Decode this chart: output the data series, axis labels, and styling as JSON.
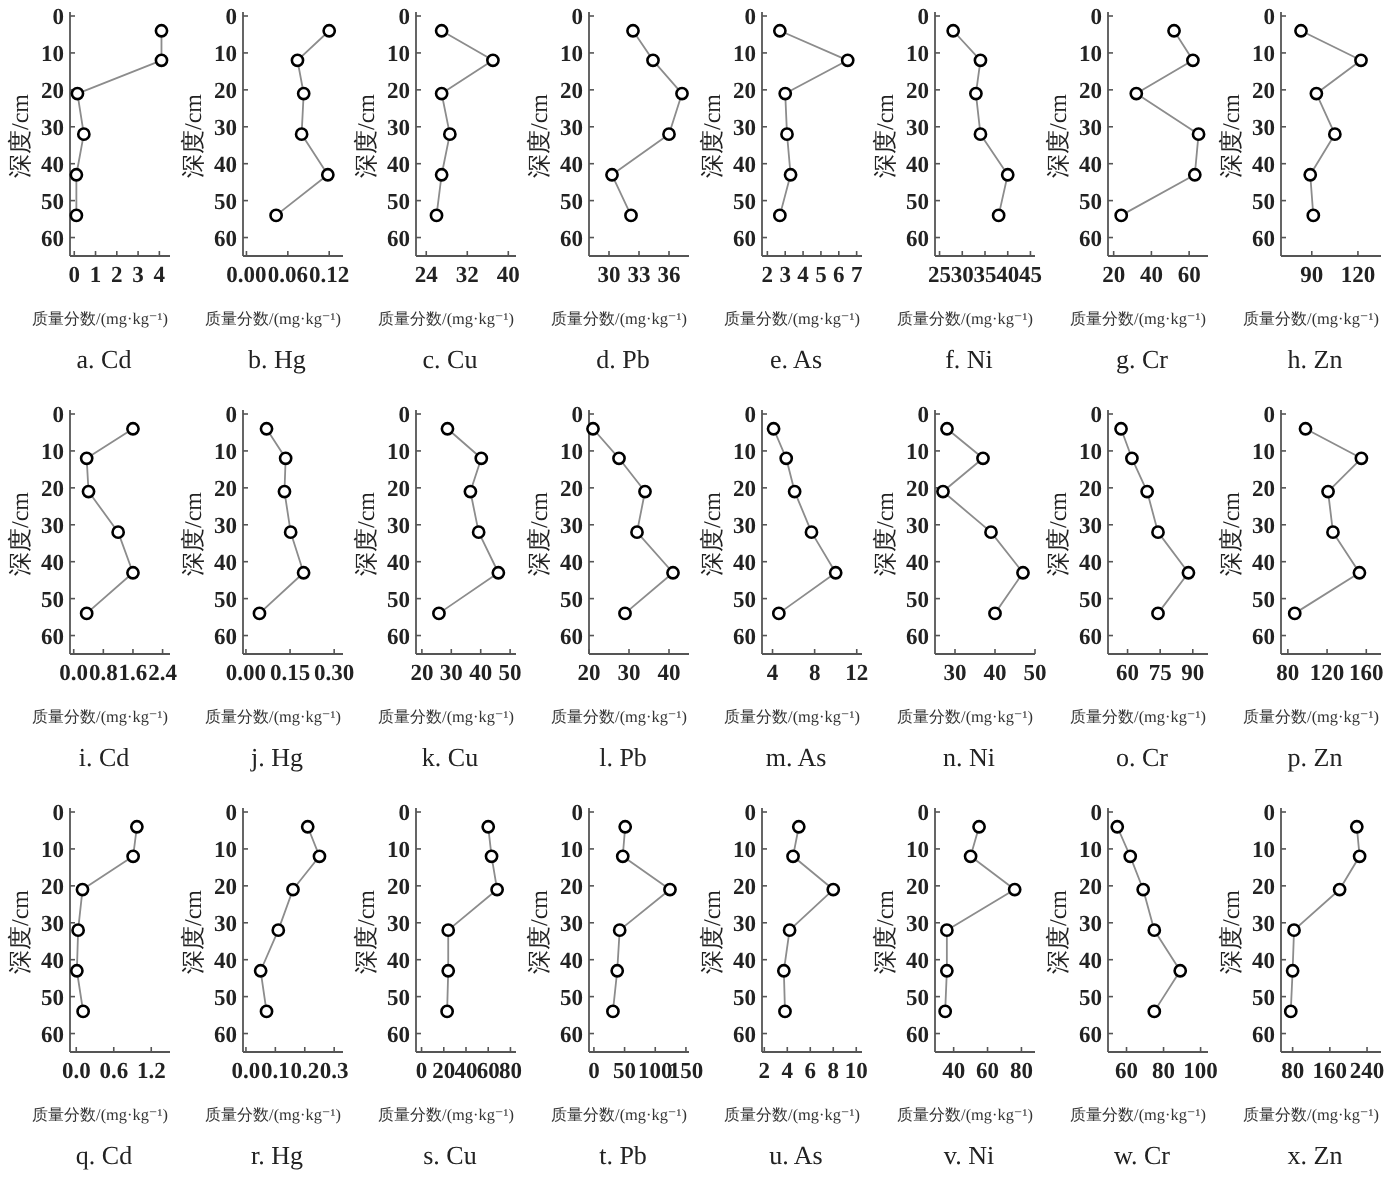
{
  "chart_data": [
    {
      "type": "line",
      "title": "a. Cd",
      "xlabel": "质量分数/(mg·kg⁻¹)",
      "ylabel": "深度/cm",
      "marker": "circle",
      "xlim": [
        -0.2,
        4.5
      ],
      "xticks": [
        0,
        1,
        2,
        3,
        4
      ],
      "ylim": [
        65,
        0
      ],
      "yticks": [
        0,
        10,
        20,
        30,
        40,
        50,
        60
      ],
      "series": [
        {
          "color": "#8c8c8c",
          "x": [
            4.1,
            4.1,
            0.15,
            0.45,
            0.1,
            0.1
          ],
          "values": [
            4,
            12,
            21,
            32,
            43,
            54
          ]
        }
      ]
    },
    {
      "type": "line",
      "title": "b. Hg",
      "xlabel": "质量分数/(mg·kg⁻¹)",
      "ylabel": "深度/cm",
      "marker": "circle",
      "xlim": [
        -0.005,
        0.14
      ],
      "xticks": [
        {
          "value": 0,
          "label": "0.00"
        },
        {
          "value": 0.06,
          "label": "0.06"
        },
        {
          "value": 0.12,
          "label": "0.12"
        }
      ],
      "ylim": [
        65,
        0
      ],
      "yticks": [
        0,
        10,
        20,
        30,
        40,
        50,
        60
      ],
      "series": [
        {
          "color": "#8c8c8c",
          "x": [
            0.12,
            0.074,
            0.083,
            0.08,
            0.118,
            0.043
          ],
          "values": [
            4,
            12,
            21,
            32,
            43,
            54
          ]
        }
      ]
    },
    {
      "type": "line",
      "title": "c. Cu",
      "xlabel": "质量分数/(mg·kg⁻¹)",
      "ylabel": "深度/cm",
      "marker": "circle",
      "xlim": [
        22,
        41.5
      ],
      "xticks": [
        24,
        32,
        40
      ],
      "ylim": [
        65,
        0
      ],
      "yticks": [
        0,
        10,
        20,
        30,
        40,
        50,
        60
      ],
      "series": [
        {
          "color": "#8c8c8c",
          "x": [
            27,
            37,
            27,
            28.6,
            27,
            26
          ],
          "values": [
            4,
            12,
            21,
            32,
            43,
            54
          ]
        }
      ]
    },
    {
      "type": "line",
      "title": "d. Pb",
      "xlabel": "质量分数/(mg·kg⁻¹)",
      "ylabel": "深度/cm",
      "marker": "circle",
      "xlim": [
        28,
        38
      ],
      "xticks": [
        30,
        33,
        36
      ],
      "ylim": [
        65,
        0
      ],
      "yticks": [
        0,
        10,
        20,
        30,
        40,
        50,
        60
      ],
      "series": [
        {
          "color": "#8c8c8c",
          "x": [
            32.4,
            34.4,
            37.3,
            36,
            30.3,
            32.2
          ],
          "values": [
            4,
            12,
            21,
            32,
            43,
            54
          ]
        }
      ]
    },
    {
      "type": "line",
      "title": "e. As",
      "xlabel": "质量分数/(mg·kg⁻¹)",
      "ylabel": "深度/cm",
      "marker": "circle",
      "xlim": [
        1.7,
        7.3
      ],
      "xticks": [
        2,
        3,
        4,
        5,
        6,
        7
      ],
      "ylim": [
        65,
        0
      ],
      "yticks": [
        0,
        10,
        20,
        30,
        40,
        50,
        60
      ],
      "series": [
        {
          "color": "#8c8c8c",
          "x": [
            2.7,
            6.5,
            3.0,
            3.1,
            3.3,
            2.7
          ],
          "values": [
            4,
            12,
            21,
            32,
            43,
            54
          ]
        }
      ]
    },
    {
      "type": "line",
      "title": "f. Ni",
      "xlabel": "质量分数/(mg·kg⁻¹)",
      "ylabel": "深度/cm",
      "marker": "circle",
      "xlim": [
        24,
        46
      ],
      "xticks": [
        25,
        30,
        35,
        40,
        45
      ],
      "ylim": [
        65,
        0
      ],
      "yticks": [
        0,
        10,
        20,
        30,
        40,
        50,
        60
      ],
      "series": [
        {
          "color": "#8c8c8c",
          "x": [
            28,
            34,
            33,
            34,
            40,
            38
          ],
          "values": [
            4,
            12,
            21,
            32,
            43,
            54
          ]
        }
      ]
    },
    {
      "type": "line",
      "title": "g. Cr",
      "xlabel": "质量分数/(mg·kg⁻¹)",
      "ylabel": "深度/cm",
      "marker": "circle",
      "xlim": [
        17,
        70
      ],
      "xticks": [
        20,
        40,
        60
      ],
      "ylim": [
        65,
        0
      ],
      "yticks": [
        0,
        10,
        20,
        30,
        40,
        50,
        60
      ],
      "series": [
        {
          "color": "#8c8c8c",
          "x": [
            52,
            62,
            32,
            65,
            63,
            24
          ],
          "values": [
            4,
            12,
            21,
            32,
            43,
            54
          ]
        }
      ]
    },
    {
      "type": "line",
      "title": "h. Zn",
      "xlabel": "质量分数/(mg·kg⁻¹)",
      "ylabel": "深度/cm",
      "marker": "circle",
      "xlim": [
        70,
        135
      ],
      "xticks": [
        90,
        120
      ],
      "ylim": [
        65,
        0
      ],
      "yticks": [
        0,
        10,
        20,
        30,
        40,
        50,
        60
      ],
      "series": [
        {
          "color": "#8c8c8c",
          "x": [
            83,
            122,
            93,
            105,
            89,
            91
          ],
          "values": [
            4,
            12,
            21,
            32,
            43,
            54
          ]
        }
      ]
    },
    {
      "type": "line",
      "title": "i. Cd",
      "xlabel": "质量分数/(mg·kg⁻¹)",
      "ylabel": "深度/cm",
      "marker": "circle",
      "xlim": [
        -0.1,
        2.6
      ],
      "xticks": [
        {
          "value": 0,
          "label": "0.0"
        },
        {
          "value": 0.8,
          "label": "0.8"
        },
        {
          "value": 1.6,
          "label": "1.6"
        },
        {
          "value": 2.4,
          "label": "2.4"
        }
      ],
      "ylim": [
        65,
        0
      ],
      "yticks": [
        0,
        10,
        20,
        30,
        40,
        50,
        60
      ],
      "series": [
        {
          "color": "#8c8c8c",
          "x": [
            1.6,
            0.35,
            0.4,
            1.2,
            1.6,
            0.35
          ],
          "values": [
            4,
            12,
            21,
            32,
            43,
            54
          ]
        }
      ]
    },
    {
      "type": "line",
      "title": "j. Hg",
      "xlabel": "质量分数/(mg·kg⁻¹)",
      "ylabel": "深度/cm",
      "marker": "circle",
      "xlim": [
        -0.01,
        0.33
      ],
      "xticks": [
        {
          "value": 0,
          "label": "0.00"
        },
        {
          "value": 0.15,
          "label": "0.15"
        },
        {
          "value": 0.3,
          "label": "0.30"
        }
      ],
      "ylim": [
        65,
        0
      ],
      "yticks": [
        0,
        10,
        20,
        30,
        40,
        50,
        60
      ],
      "series": [
        {
          "color": "#8c8c8c",
          "x": [
            0.07,
            0.135,
            0.131,
            0.152,
            0.196,
            0.046
          ],
          "values": [
            4,
            12,
            21,
            32,
            43,
            54
          ]
        }
      ]
    },
    {
      "type": "line",
      "title": "k. Cu",
      "xlabel": "质量分数/(mg·kg⁻¹)",
      "ylabel": "深度/cm",
      "marker": "circle",
      "xlim": [
        18,
        52
      ],
      "xticks": [
        20,
        30,
        40,
        50
      ],
      "ylim": [
        65,
        0
      ],
      "yticks": [
        0,
        10,
        20,
        30,
        40,
        50,
        60
      ],
      "series": [
        {
          "color": "#8c8c8c",
          "x": [
            28.7,
            40.2,
            36.5,
            39.3,
            46,
            25.8
          ],
          "values": [
            4,
            12,
            21,
            32,
            43,
            54
          ]
        }
      ]
    },
    {
      "type": "line",
      "title": "l. Pb",
      "xlabel": "质量分数/(mg·kg⁻¹)",
      "ylabel": "深度/cm",
      "marker": "circle",
      "xlim": [
        20,
        45
      ],
      "xticks": [
        20,
        30,
        40
      ],
      "ylim": [
        65,
        0
      ],
      "yticks": [
        0,
        10,
        20,
        30,
        40,
        50,
        60
      ],
      "series": [
        {
          "color": "#8c8c8c",
          "x": [
            21,
            27.5,
            34,
            32,
            41,
            29
          ],
          "values": [
            4,
            12,
            21,
            32,
            43,
            54
          ]
        }
      ]
    },
    {
      "type": "line",
      "title": "m. As",
      "xlabel": "质量分数/(mg·kg⁻¹)",
      "ylabel": "深度/cm",
      "marker": "circle",
      "xlim": [
        3,
        12.5
      ],
      "xticks": [
        4,
        8,
        12
      ],
      "ylim": [
        65,
        0
      ],
      "yticks": [
        0,
        10,
        20,
        30,
        40,
        50,
        60
      ],
      "series": [
        {
          "color": "#8c8c8c",
          "x": [
            4.1,
            5.3,
            6.1,
            7.7,
            10,
            4.6
          ],
          "values": [
            4,
            12,
            21,
            32,
            43,
            54
          ]
        }
      ]
    },
    {
      "type": "line",
      "title": "n. Ni",
      "xlabel": "质量分数/(mg·kg⁻¹)",
      "ylabel": "深度/cm",
      "marker": "circle",
      "xlim": [
        25,
        50
      ],
      "xticks": [
        30,
        40,
        50
      ],
      "ylim": [
        65,
        0
      ],
      "yticks": [
        0,
        10,
        20,
        30,
        40,
        50,
        60
      ],
      "series": [
        {
          "color": "#8c8c8c",
          "x": [
            28,
            37,
            27,
            39,
            47,
            40
          ],
          "values": [
            4,
            12,
            21,
            32,
            43,
            54
          ]
        }
      ]
    },
    {
      "type": "line",
      "title": "o. Cr",
      "xlabel": "质量分数/(mg·kg⁻¹)",
      "ylabel": "深度/cm",
      "marker": "circle",
      "xlim": [
        51,
        97
      ],
      "xticks": [
        60,
        75,
        90
      ],
      "ylim": [
        65,
        0
      ],
      "yticks": [
        0,
        10,
        20,
        30,
        40,
        50,
        60
      ],
      "series": [
        {
          "color": "#8c8c8c",
          "x": [
            57,
            62,
            69,
            74,
            88,
            74
          ],
          "values": [
            4,
            12,
            21,
            32,
            43,
            54
          ]
        }
      ]
    },
    {
      "type": "line",
      "title": "p. Zn",
      "xlabel": "质量分数/(mg·kg⁻¹)",
      "ylabel": "深度/cm",
      "marker": "circle",
      "xlim": [
        73,
        175
      ],
      "xticks": [
        80,
        120,
        160
      ],
      "ylim": [
        65,
        0
      ],
      "yticks": [
        0,
        10,
        20,
        30,
        40,
        50,
        60
      ],
      "series": [
        {
          "color": "#8c8c8c",
          "x": [
            98,
            155,
            121,
            126,
            153,
            87
          ],
          "values": [
            4,
            12,
            21,
            32,
            43,
            54
          ]
        }
      ]
    },
    {
      "type": "line",
      "title": "q. Cd",
      "xlabel": "质量分数/(mg·kg⁻¹)",
      "ylabel": "深度/cm",
      "marker": "circle",
      "xlim": [
        -0.1,
        1.5
      ],
      "xticks": [
        {
          "value": 0,
          "label": "0.0"
        },
        {
          "value": 0.6,
          "label": "0.6"
        },
        {
          "value": 1.2,
          "label": "1.2"
        }
      ],
      "ylim": [
        65,
        0
      ],
      "yticks": [
        0,
        10,
        20,
        30,
        40,
        50,
        60
      ],
      "series": [
        {
          "color": "#8c8c8c",
          "x": [
            0.97,
            0.91,
            0.1,
            0.03,
            0.01,
            0.11
          ],
          "values": [
            4,
            12,
            21,
            32,
            43,
            54
          ]
        }
      ]
    },
    {
      "type": "line",
      "title": "r. Hg",
      "xlabel": "质量分数/(mg·kg⁻¹)",
      "ylabel": "深度/cm",
      "marker": "circle",
      "xlim": [
        -0.01,
        0.33
      ],
      "xticks": [
        {
          "value": 0,
          "label": "0.0"
        },
        {
          "value": 0.1,
          "label": "0.1"
        },
        {
          "value": 0.2,
          "label": "0.2"
        },
        {
          "value": 0.3,
          "label": "0.3"
        }
      ],
      "ylim": [
        65,
        0
      ],
      "yticks": [
        0,
        10,
        20,
        30,
        40,
        50,
        60
      ],
      "series": [
        {
          "color": "#8c8c8c",
          "x": [
            0.21,
            0.25,
            0.16,
            0.11,
            0.05,
            0.07
          ],
          "values": [
            4,
            12,
            21,
            32,
            43,
            54
          ]
        }
      ]
    },
    {
      "type": "line",
      "title": "s. Cu",
      "xlabel": "质量分数/(mg·kg⁻¹)",
      "ylabel": "深度/cm",
      "marker": "circle",
      "xlim": [
        -5,
        85
      ],
      "xticks": [
        0,
        20,
        40,
        60,
        80
      ],
      "ylim": [
        65,
        0
      ],
      "yticks": [
        0,
        10,
        20,
        30,
        40,
        50,
        60
      ],
      "series": [
        {
          "color": "#8c8c8c",
          "x": [
            60,
            63,
            68,
            24,
            24,
            23
          ],
          "values": [
            4,
            12,
            21,
            32,
            43,
            54
          ]
        }
      ]
    },
    {
      "type": "line",
      "title": "t. Pb",
      "xlabel": "质量分数/(mg·kg⁻¹)",
      "ylabel": "深度/cm",
      "marker": "circle",
      "xlim": [
        -8,
        155
      ],
      "xticks": [
        0,
        50,
        100,
        150
      ],
      "ylim": [
        65,
        0
      ],
      "yticks": [
        0,
        10,
        20,
        30,
        40,
        50,
        60
      ],
      "series": [
        {
          "color": "#8c8c8c",
          "x": [
            51,
            47,
            124,
            42,
            38,
            31
          ],
          "values": [
            4,
            12,
            21,
            32,
            43,
            54
          ]
        }
      ]
    },
    {
      "type": "line",
      "title": "u. As",
      "xlabel": "质量分数/(mg·kg⁻¹)",
      "ylabel": "深度/cm",
      "marker": "circle",
      "xlim": [
        1.8,
        10.5
      ],
      "xticks": [
        2,
        4,
        6,
        8,
        10
      ],
      "ylim": [
        65,
        0
      ],
      "yticks": [
        0,
        10,
        20,
        30,
        40,
        50,
        60
      ],
      "series": [
        {
          "color": "#8c8c8c",
          "x": [
            5,
            4.5,
            8,
            4.2,
            3.7,
            3.8
          ],
          "values": [
            4,
            12,
            21,
            32,
            43,
            54
          ]
        }
      ]
    },
    {
      "type": "line",
      "title": "v. Ni",
      "xlabel": "质量分数/(mg·kg⁻¹)",
      "ylabel": "深度/cm",
      "marker": "circle",
      "xlim": [
        29,
        88
      ],
      "xticks": [
        40,
        60,
        80
      ],
      "ylim": [
        65,
        0
      ],
      "yticks": [
        0,
        10,
        20,
        30,
        40,
        50,
        60
      ],
      "series": [
        {
          "color": "#8c8c8c",
          "x": [
            55,
            50,
            76,
            36,
            36,
            35
          ],
          "values": [
            4,
            12,
            21,
            32,
            43,
            54
          ]
        }
      ]
    },
    {
      "type": "line",
      "title": "w. Cr",
      "xlabel": "质量分数/(mg·kg⁻¹)",
      "ylabel": "深度/cm",
      "marker": "circle",
      "xlim": [
        50,
        104
      ],
      "xticks": [
        60,
        80,
        100
      ],
      "ylim": [
        65,
        0
      ],
      "yticks": [
        0,
        10,
        20,
        30,
        40,
        50,
        60
      ],
      "series": [
        {
          "color": "#8c8c8c",
          "x": [
            55,
            62,
            69,
            75,
            89,
            75
          ],
          "values": [
            4,
            12,
            21,
            32,
            43,
            54
          ]
        }
      ]
    },
    {
      "type": "line",
      "title": "x. Zn",
      "xlabel": "质量分数/(mg·kg⁻¹)",
      "ylabel": "深度/cm",
      "marker": "circle",
      "xlim": [
        55,
        270
      ],
      "xticks": [
        80,
        160,
        240
      ],
      "ylim": [
        65,
        0
      ],
      "yticks": [
        0,
        10,
        20,
        30,
        40,
        50,
        60
      ],
      "series": [
        {
          "color": "#8c8c8c",
          "x": [
            218,
            224,
            181,
            83,
            80,
            76
          ],
          "values": [
            4,
            12,
            21,
            32,
            43,
            54
          ]
        }
      ]
    }
  ]
}
